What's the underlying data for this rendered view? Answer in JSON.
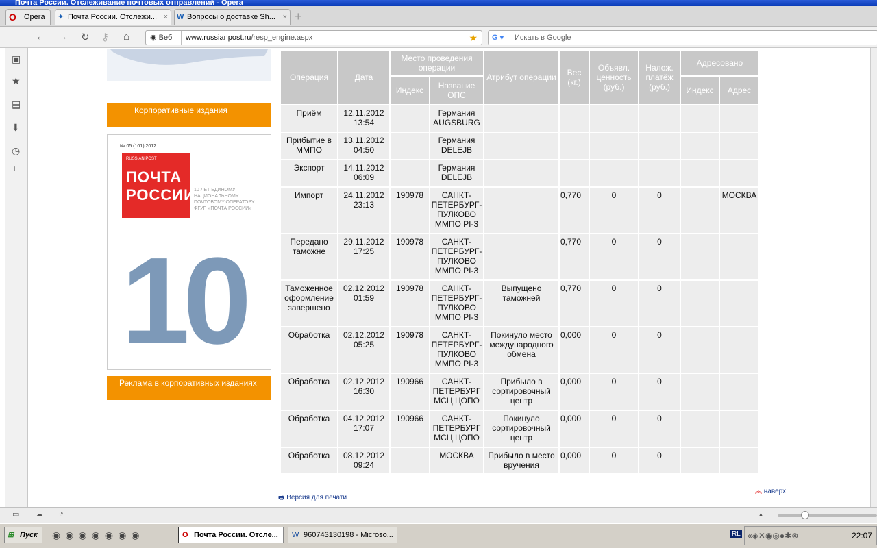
{
  "window": {
    "title": "Почта России. Отслеживание почтовых отправлений - Opera"
  },
  "browser": {
    "menu_label": "Opera",
    "tabs": [
      {
        "label": "Почта России. Отслежи...",
        "icon": "eagle-icon",
        "active": true
      },
      {
        "label": "Вопросы о доставке Sh...",
        "icon": "w-icon",
        "active": false
      }
    ],
    "address": {
      "web_label": "Веб",
      "url_domain": "www.russianpost.ru",
      "url_path": "/resp_engine.aspx"
    },
    "search_placeholder": "Искать в Google"
  },
  "sidebar": {
    "corp_label": "Корпоративные издания",
    "ad_label": "Реклама в корпоративных изданиях",
    "magazine": {
      "issue": "№ 05 (101) 2012",
      "brand_small": "RUSSIAN POST",
      "brand": "ПОЧТА РОССИИ",
      "tagline": "10 ЛЕТ ЕДИНОМУ НАЦИОНАЛЬНОМУ ПОЧТОВОМУ ОПЕРАТОРУ ФГУП «ПОЧТА РОССИИ»",
      "big_number": "10"
    }
  },
  "table": {
    "headers": {
      "operation": "Операция",
      "date": "Дата",
      "place": "Место проведения операции",
      "place_index": "Индекс",
      "place_name": "Название ОПС",
      "attr": "Атрибут операции",
      "weight": "Вес (кг.)",
      "declared": "Объявл. ценность (руб.)",
      "cod": "Налож. платёж (руб.)",
      "addressed": "Адресовано",
      "addr_index": "Индекс",
      "addr": "Адрес"
    },
    "rows": [
      [
        "Приём",
        "12.11.2012 13:54",
        "",
        "Германия AUGSBURG",
        "",
        "",
        "",
        "",
        "",
        ""
      ],
      [
        "Прибытие в ММПО",
        "13.11.2012 04:50",
        "",
        "Германия DELEJB",
        "",
        "",
        "",
        "",
        "",
        ""
      ],
      [
        "Экспорт",
        "14.11.2012 06:09",
        "",
        "Германия DELEJB",
        "",
        "",
        "",
        "",
        "",
        ""
      ],
      [
        "Импорт",
        "24.11.2012 23:13",
        "190978",
        "САНКТ-ПЕТЕРБУРГ-ПУЛКОВО ММПО PI-3",
        "",
        "0,770",
        "0",
        "0",
        "",
        "МОСКВА"
      ],
      [
        "Передано таможне",
        "29.11.2012 17:25",
        "190978",
        "САНКТ-ПЕТЕРБУРГ-ПУЛКОВО ММПО PI-3",
        "",
        "0,770",
        "0",
        "0",
        "",
        ""
      ],
      [
        "Таможенное оформление завершено",
        "02.12.2012 01:59",
        "190978",
        "САНКТ-ПЕТЕРБУРГ-ПУЛКОВО ММПО PI-3",
        "Выпущено таможней",
        "0,770",
        "0",
        "0",
        "",
        ""
      ],
      [
        "Обработка",
        "02.12.2012 05:25",
        "190978",
        "САНКТ-ПЕТЕРБУРГ-ПУЛКОВО ММПО PI-3",
        "Покинуло место международного обмена",
        "0,000",
        "0",
        "0",
        "",
        ""
      ],
      [
        "Обработка",
        "02.12.2012 16:30",
        "190966",
        "САНКТ-ПЕТЕРБУРГ МСЦ ЦОПО",
        "Прибыло в сортировочный центр",
        "0,000",
        "0",
        "0",
        "",
        ""
      ],
      [
        "Обработка",
        "04.12.2012 17:07",
        "190966",
        "САНКТ-ПЕТЕРБУРГ МСЦ ЦОПО",
        "Покинуло сортировочный центр",
        "0,000",
        "0",
        "0",
        "",
        ""
      ],
      [
        "Обработка",
        "08.12.2012 09:24",
        "",
        "МОСКВА",
        "Прибыло в место вручения",
        "0,000",
        "0",
        "0",
        "",
        ""
      ]
    ]
  },
  "footer": {
    "print_label": "Версия для печати",
    "top_label": "наверх"
  },
  "taskbar": {
    "start_label": "Пуск",
    "items": [
      {
        "label": "Почта России. Отсле...",
        "active": true
      },
      {
        "label": "960743130198 - Microso...",
        "active": false
      }
    ],
    "lang": "RL",
    "clock": "22:07"
  },
  "colors": {
    "orange": "#f39200",
    "header_gray": "#c8c8c8",
    "row_gray": "#ededed",
    "brand_red": "#e42a28"
  }
}
